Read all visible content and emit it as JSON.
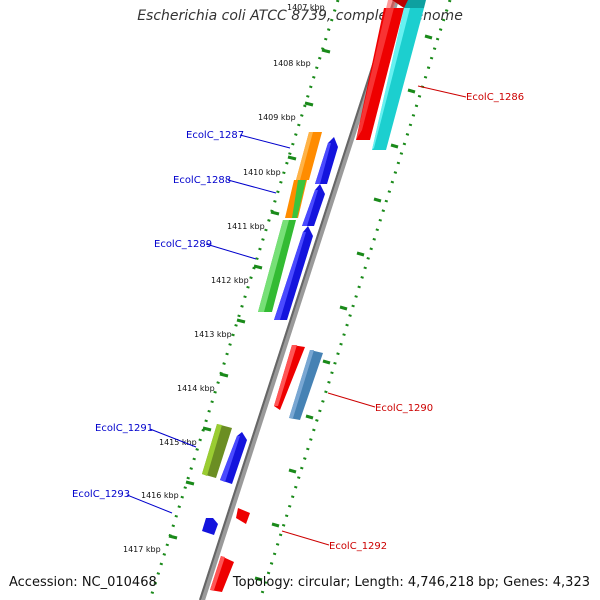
{
  "title": "Escherichia coli ATCC 8739, complete genome",
  "accession": "Accession: NC_010468",
  "topology": "Topology: circular; Length: 4,746,218 bp; Genes: 4,323",
  "scale_labels": [
    "1407 kbp",
    "1408 kbp",
    "1409 kbp",
    "1410 kbp",
    "1411 kbp",
    "1412 kbp",
    "1413 kbp",
    "1414 kbp",
    "1415 kbp",
    "1416 kbp",
    "1417 kbp"
  ],
  "gene_labels": {
    "EcolC_1286": "EcolC_1286",
    "EcolC_1287": "EcolC_1287",
    "EcolC_1288": "EcolC_1288",
    "EcolC_1289": "EcolC_1289",
    "EcolC_1290": "EcolC_1290",
    "EcolC_1291": "EcolC_1291",
    "EcolC_1292": "EcolC_1292",
    "EcolC_1293": "EcolC_1293"
  },
  "colors": {
    "label_left": "#0000cc",
    "label_right": "#cc0000",
    "backbone": "#777777",
    "tick_green": "#1a8a1a"
  }
}
